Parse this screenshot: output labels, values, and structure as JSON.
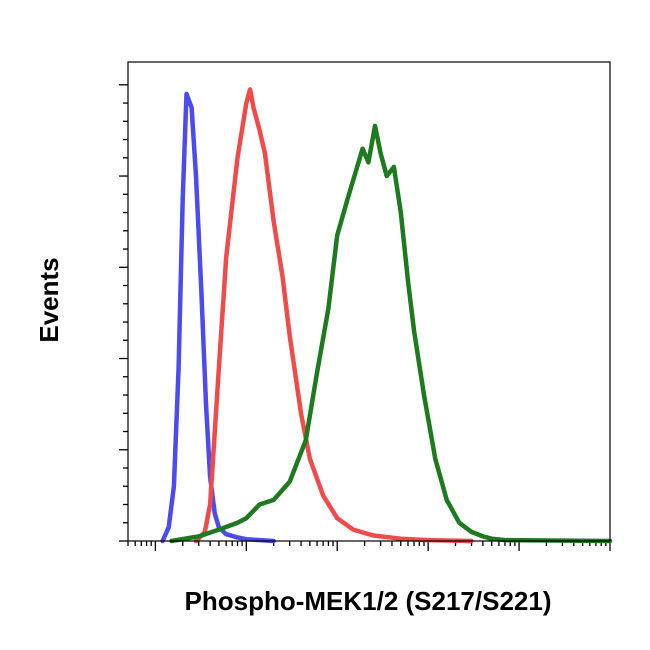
{
  "chart_data": {
    "type": "line",
    "title": "",
    "xlabel": "Phospho-MEK1/2 (S217/S221)",
    "ylabel": "Events",
    "xscale": "log",
    "xlim": [
      0.5,
      100000
    ],
    "ylim": [
      0,
      105
    ],
    "grid": false,
    "legend": "none",
    "tick_labels_shown": false,
    "series": [
      {
        "color": "#4b4bf0",
        "x": [
          1.2,
          1.4,
          1.6,
          1.8,
          2.0,
          2.2,
          2.5,
          2.8,
          3.2,
          3.6,
          4.0,
          4.5,
          5.0,
          6.0,
          8.0,
          10,
          20
        ],
        "y": [
          0,
          3,
          12,
          38,
          75,
          98,
          95,
          80,
          55,
          30,
          14,
          6,
          3,
          1.5,
          0.8,
          0.4,
          0
        ]
      },
      {
        "color": "#f04b4b",
        "x": [
          2.8,
          3.5,
          4.0,
          5.0,
          6.0,
          8.0,
          10,
          11,
          12,
          14,
          16,
          20,
          25,
          30,
          40,
          50,
          70,
          100,
          150,
          250,
          500,
          1000,
          3000
        ],
        "y": [
          0,
          2,
          8,
          38,
          62,
          84,
          96,
          99,
          95,
          90,
          85,
          70,
          58,
          45,
          28,
          18,
          10,
          5,
          2.5,
          1.2,
          0.5,
          0.2,
          0
        ]
      },
      {
        "color": "#1e7a1e",
        "x": [
          1.5,
          3,
          5,
          8,
          10,
          14,
          20,
          30,
          45,
          60,
          80,
          100,
          130,
          160,
          190,
          220,
          260,
          300,
          350,
          420,
          500,
          600,
          700,
          900,
          1200,
          1600,
          2200,
          3000,
          4000,
          5000,
          7000,
          100000
        ],
        "y": [
          0,
          1,
          2.5,
          4,
          5,
          8,
          9,
          13,
          22,
          37,
          51,
          67,
          75,
          81,
          86,
          83,
          91,
          85,
          80,
          82,
          72,
          57,
          46,
          32,
          18,
          9,
          4,
          2,
          1,
          0.5,
          0.2,
          0
        ]
      }
    ]
  }
}
